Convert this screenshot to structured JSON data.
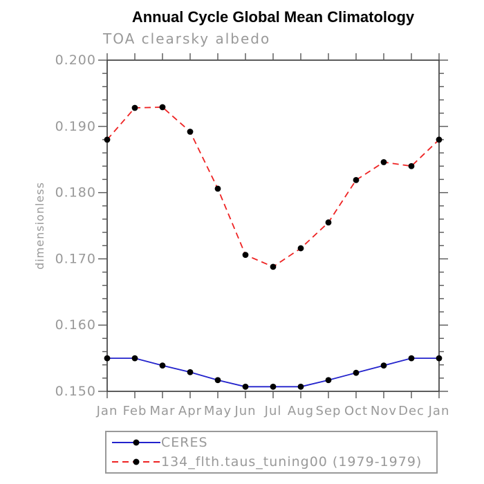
{
  "chart_data": {
    "type": "line",
    "title": "Annual Cycle Global Mean Climatology",
    "subtitle": "TOA clearsky albedo",
    "ylabel": "dimensionless",
    "xlabel": "",
    "categories": [
      "Jan",
      "Feb",
      "Mar",
      "Apr",
      "May",
      "Jun",
      "Jul",
      "Aug",
      "Sep",
      "Oct",
      "Nov",
      "Dec",
      "Jan"
    ],
    "ylim": [
      0.15,
      0.2
    ],
    "y_major_tick_labels": [
      "0.150",
      "0.160",
      "0.170",
      "0.180",
      "0.190",
      "0.200"
    ],
    "y_minor_step": 0.002,
    "grid": false,
    "legend_position": "bottom",
    "marker_color": "#000000",
    "series": [
      {
        "name": "CERES",
        "color": "#2222cc",
        "line_style": "solid",
        "marker": "filled-circle",
        "values": [
          0.155,
          0.155,
          0.1539,
          0.1529,
          0.1517,
          0.1507,
          0.1507,
          0.1507,
          0.1517,
          0.1528,
          0.1539,
          0.155,
          0.155
        ]
      },
      {
        "name": "134_flth.taus_tuning00 (1979-1979)",
        "color": "#ee2222",
        "line_style": "dashed",
        "marker": "filled-circle",
        "values": [
          0.188,
          0.1928,
          0.1929,
          0.1892,
          0.1806,
          0.1706,
          0.1688,
          0.1716,
          0.1755,
          0.1819,
          0.1846,
          0.184,
          0.188
        ]
      }
    ]
  },
  "colors": {
    "title_text": "#000000",
    "axis_line": "#333333",
    "tick_line": "#555555",
    "label_text": "#999999",
    "legend_border": "#999999"
  }
}
